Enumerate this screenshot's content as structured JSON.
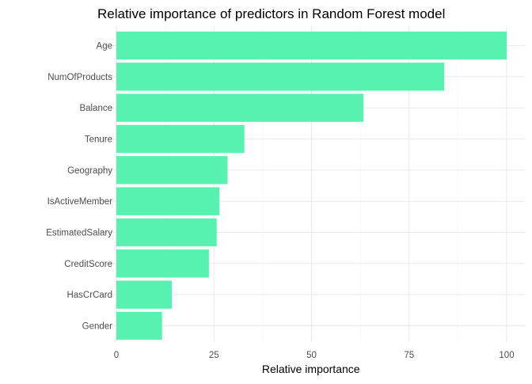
{
  "chart_data": {
    "type": "bar",
    "orientation": "horizontal",
    "title": "Relative importance of predictors in Random Forest model",
    "xlabel": "Relative importance",
    "ylabel": "",
    "categories": [
      "Age",
      "NumOfProducts",
      "Balance",
      "Tenure",
      "Geography",
      "IsActiveMember",
      "EstimatedSalary",
      "CreditScore",
      "HasCrCard",
      "Gender"
    ],
    "values": [
      100,
      84,
      63.3,
      32.8,
      28.5,
      26.4,
      25.7,
      23.7,
      14.2,
      11.7
    ],
    "xlim": [
      0,
      100
    ],
    "x_ticks": [
      0,
      25,
      50,
      75,
      100
    ],
    "x_tick_labels": [
      "0",
      "25",
      "50",
      "75",
      "100"
    ],
    "grid": true,
    "legend": "none",
    "colors": {
      "bar": "#57f2b0",
      "grid_major": "#ebebeb",
      "grid_minor": "#f4f4f4",
      "tick_text": "#4d4d4d",
      "title": "#000000"
    }
  }
}
